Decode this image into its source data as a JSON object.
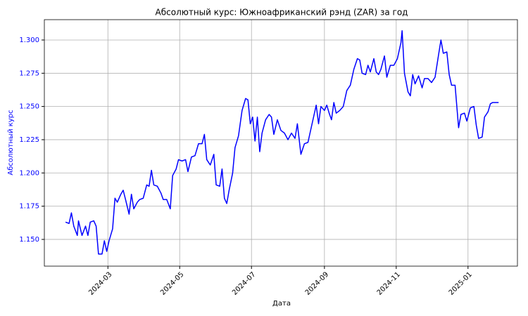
{
  "chart_data": {
    "type": "line",
    "title": "Абсолютный курс: Южноафриканский рэнд (ZAR) за год",
    "xlabel": "Дата",
    "ylabel": "Абсолютный курс",
    "x": [
      "2024-01-25",
      "2024-01-28",
      "2024-01-30",
      "2024-02-01",
      "2024-02-04",
      "2024-02-05",
      "2024-02-08",
      "2024-02-11",
      "2024-02-13",
      "2024-02-15",
      "2024-02-18",
      "2024-02-20",
      "2024-02-22",
      "2024-02-25",
      "2024-02-27",
      "2024-02-29",
      "2024-03-02",
      "2024-03-05",
      "2024-03-07",
      "2024-03-09",
      "2024-03-12",
      "2024-03-14",
      "2024-03-16",
      "2024-03-19",
      "2024-03-21",
      "2024-03-23",
      "2024-03-26",
      "2024-03-28",
      "2024-03-31",
      "2024-04-03",
      "2024-04-05",
      "2024-04-07",
      "2024-04-09",
      "2024-04-12",
      "2024-04-15",
      "2024-04-17",
      "2024-04-20",
      "2024-04-23",
      "2024-04-25",
      "2024-04-28",
      "2024-04-30",
      "2024-05-03",
      "2024-05-06",
      "2024-05-08",
      "2024-05-11",
      "2024-05-14",
      "2024-05-17",
      "2024-05-20",
      "2024-05-22",
      "2024-05-24",
      "2024-05-27",
      "2024-05-30",
      "2024-06-01",
      "2024-06-04",
      "2024-06-06",
      "2024-06-08",
      "2024-06-10",
      "2024-06-12",
      "2024-06-15",
      "2024-06-17",
      "2024-06-20",
      "2024-06-23",
      "2024-06-26",
      "2024-06-28",
      "2024-06-30",
      "2024-07-02",
      "2024-07-04",
      "2024-07-06",
      "2024-07-08",
      "2024-07-10",
      "2024-07-13",
      "2024-07-16",
      "2024-07-18",
      "2024-07-20",
      "2024-07-23",
      "2024-07-26",
      "2024-07-29",
      "2024-08-01",
      "2024-08-04",
      "2024-08-07",
      "2024-08-09",
      "2024-08-12",
      "2024-08-15",
      "2024-08-18",
      "2024-08-21",
      "2024-08-23",
      "2024-08-25",
      "2024-08-27",
      "2024-08-29",
      "2024-09-01",
      "2024-09-03",
      "2024-09-05",
      "2024-09-07",
      "2024-09-09",
      "2024-09-11",
      "2024-09-14",
      "2024-09-17",
      "2024-09-20",
      "2024-09-23",
      "2024-09-26",
      "2024-09-29",
      "2024-10-01",
      "2024-10-03",
      "2024-10-06",
      "2024-10-08",
      "2024-10-10",
      "2024-10-13",
      "2024-10-15",
      "2024-10-17",
      "2024-10-19",
      "2024-10-22",
      "2024-10-24",
      "2024-10-27",
      "2024-10-30",
      "2024-11-02",
      "2024-11-05",
      "2024-11-06",
      "2024-11-08",
      "2024-11-11",
      "2024-11-13",
      "2024-11-15",
      "2024-11-17",
      "2024-11-20",
      "2024-11-23",
      "2024-11-25",
      "2024-11-28",
      "2024-12-01",
      "2024-12-04",
      "2024-12-07",
      "2024-12-09",
      "2024-12-11",
      "2024-12-14",
      "2024-12-16",
      "2024-12-18",
      "2024-12-21",
      "2024-12-24",
      "2024-12-26",
      "2024-12-29",
      "2024-12-31",
      "2025-01-03",
      "2025-01-06",
      "2025-01-08",
      "2025-01-10",
      "2025-01-13",
      "2025-01-15",
      "2025-01-18",
      "2025-01-20",
      "2025-01-22",
      "2025-01-24",
      "2025-01-27"
    ],
    "series": [
      {
        "name": "ZAR",
        "color": "#0000ff",
        "values": [
          1.163,
          1.162,
          1.17,
          1.16,
          1.153,
          1.164,
          1.153,
          1.16,
          1.153,
          1.163,
          1.164,
          1.16,
          1.139,
          1.139,
          1.149,
          1.141,
          1.149,
          1.158,
          1.181,
          1.178,
          1.184,
          1.187,
          1.18,
          1.169,
          1.184,
          1.173,
          1.178,
          1.18,
          1.181,
          1.191,
          1.19,
          1.202,
          1.191,
          1.19,
          1.185,
          1.18,
          1.18,
          1.173,
          1.198,
          1.203,
          1.21,
          1.209,
          1.21,
          1.201,
          1.212,
          1.213,
          1.222,
          1.222,
          1.229,
          1.21,
          1.206,
          1.214,
          1.191,
          1.19,
          1.203,
          1.181,
          1.177,
          1.187,
          1.2,
          1.219,
          1.228,
          1.247,
          1.256,
          1.255,
          1.237,
          1.242,
          1.224,
          1.242,
          1.216,
          1.23,
          1.24,
          1.244,
          1.242,
          1.229,
          1.24,
          1.232,
          1.23,
          1.225,
          1.23,
          1.226,
          1.237,
          1.214,
          1.222,
          1.223,
          1.235,
          1.243,
          1.251,
          1.237,
          1.25,
          1.247,
          1.251,
          1.245,
          1.24,
          1.253,
          1.245,
          1.247,
          1.25,
          1.262,
          1.266,
          1.278,
          1.286,
          1.285,
          1.275,
          1.274,
          1.281,
          1.276,
          1.286,
          1.276,
          1.274,
          1.278,
          1.288,
          1.272,
          1.281,
          1.281,
          1.286,
          1.298,
          1.307,
          1.275,
          1.261,
          1.258,
          1.274,
          1.267,
          1.273,
          1.264,
          1.271,
          1.271,
          1.268,
          1.272,
          1.289,
          1.3,
          1.29,
          1.291,
          1.274,
          1.266,
          1.266,
          1.234,
          1.244,
          1.245,
          1.239,
          1.249,
          1.25,
          1.236,
          1.226,
          1.227,
          1.242,
          1.246,
          1.252,
          1.253,
          1.253,
          1.253
        ]
      }
    ],
    "xlim": [
      "2024-01-07",
      "2025-02-12"
    ],
    "xticks": [
      {
        "value": "2024-03-01",
        "label": "2024-03"
      },
      {
        "value": "2024-05-01",
        "label": "2024-05"
      },
      {
        "value": "2024-07-01",
        "label": "2024-07"
      },
      {
        "value": "2024-09-01",
        "label": "2024-09"
      },
      {
        "value": "2024-11-01",
        "label": "2024-11"
      },
      {
        "value": "2025-01-01",
        "label": "2025-01"
      }
    ],
    "ylim": [
      1.1299,
      1.3153
    ],
    "yticks": [
      {
        "value": 1.15,
        "label": "1.150"
      },
      1.175,
      {
        "value": 1.2,
        "label": "1.200"
      },
      1.225,
      {
        "value": 1.25,
        "label": "1.250"
      },
      1.275,
      {
        "value": 1.3,
        "label": "1.300"
      }
    ],
    "grid": true
  }
}
